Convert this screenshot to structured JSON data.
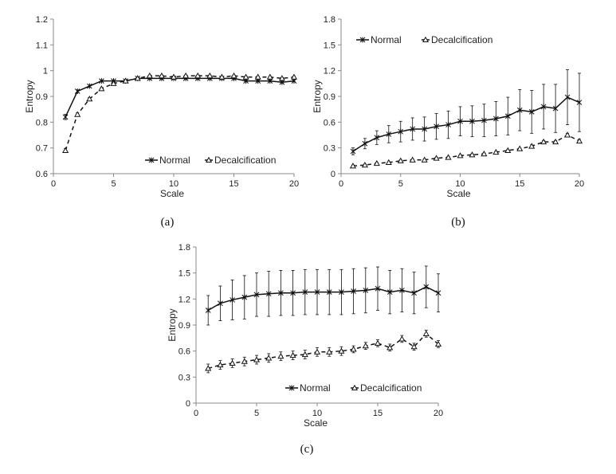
{
  "chart_data": [
    {
      "type": "line",
      "caption": "(a)",
      "xlabel": "Scale",
      "ylabel": "Entropy",
      "xlim": [
        0,
        20
      ],
      "ylim": [
        0.6,
        1.2
      ],
      "xticks": [
        0,
        5,
        10,
        15,
        20
      ],
      "yticks": [
        0.6,
        0.7,
        0.8,
        0.9,
        1,
        1.1,
        1.2
      ],
      "ytick_labels": [
        "0.6",
        "0.7",
        "0.8",
        "0.9",
        "1",
        "1.1",
        "1.2"
      ],
      "legend_position": "bottom-right",
      "x": [
        1,
        2,
        3,
        4,
        5,
        6,
        7,
        8,
        9,
        10,
        11,
        12,
        13,
        14,
        15,
        16,
        17,
        18,
        19,
        20
      ],
      "series": [
        {
          "name": "Normal",
          "style": "solid",
          "marker": "star",
          "values": [
            0.82,
            0.92,
            0.94,
            0.96,
            0.96,
            0.96,
            0.97,
            0.97,
            0.97,
            0.97,
            0.97,
            0.97,
            0.97,
            0.97,
            0.97,
            0.96,
            0.96,
            0.96,
            0.955,
            0.96
          ],
          "errors": [
            0.01,
            0.005,
            0.004,
            0.003,
            0.003,
            0.003,
            0.003,
            0.003,
            0.003,
            0.003,
            0.003,
            0.003,
            0.003,
            0.003,
            0.003,
            0.003,
            0.003,
            0.003,
            0.003,
            0.003
          ]
        },
        {
          "name": "Decalcification",
          "style": "dashed",
          "marker": "triangle",
          "values": [
            0.69,
            0.83,
            0.89,
            0.93,
            0.95,
            0.96,
            0.97,
            0.98,
            0.98,
            0.975,
            0.98,
            0.98,
            0.98,
            0.975,
            0.98,
            0.975,
            0.975,
            0.975,
            0.97,
            0.975
          ],
          "errors": [
            0.008,
            0.006,
            0.005,
            0.004,
            0.003,
            0.003,
            0.003,
            0.003,
            0.003,
            0.003,
            0.003,
            0.003,
            0.003,
            0.003,
            0.003,
            0.003,
            0.003,
            0.003,
            0.003,
            0.003
          ]
        }
      ]
    },
    {
      "type": "line",
      "caption": "(b)",
      "xlabel": "Scale",
      "ylabel": "Entropy",
      "xlim": [
        0,
        20
      ],
      "ylim": [
        0,
        1.8
      ],
      "xticks": [
        0,
        5,
        10,
        15,
        20
      ],
      "yticks": [
        0,
        0.3,
        0.6,
        0.9,
        1.2,
        1.5,
        1.8
      ],
      "ytick_labels": [
        "0",
        "0.3",
        "0.6",
        "0.9",
        "1.2",
        "1.5",
        "1.8"
      ],
      "legend_position": "top-left",
      "x": [
        1,
        2,
        3,
        4,
        5,
        6,
        7,
        8,
        9,
        10,
        11,
        12,
        13,
        14,
        15,
        16,
        17,
        18,
        19,
        20
      ],
      "series": [
        {
          "name": "Normal",
          "style": "solid",
          "marker": "star",
          "values": [
            0.26,
            0.35,
            0.42,
            0.46,
            0.49,
            0.52,
            0.52,
            0.55,
            0.57,
            0.61,
            0.61,
            0.62,
            0.64,
            0.67,
            0.74,
            0.72,
            0.78,
            0.76,
            0.89,
            0.83
          ],
          "errors": [
            0.04,
            0.06,
            0.08,
            0.1,
            0.12,
            0.13,
            0.14,
            0.15,
            0.16,
            0.17,
            0.18,
            0.19,
            0.2,
            0.22,
            0.24,
            0.25,
            0.26,
            0.28,
            0.32,
            0.34
          ]
        },
        {
          "name": "Decalcification",
          "style": "dashed",
          "marker": "triangle",
          "values": [
            0.09,
            0.1,
            0.12,
            0.13,
            0.15,
            0.16,
            0.16,
            0.18,
            0.19,
            0.21,
            0.22,
            0.23,
            0.25,
            0.27,
            0.29,
            0.32,
            0.37,
            0.37,
            0.45,
            0.38
          ],
          "errors": [
            0.01,
            0.01,
            0.01,
            0.01,
            0.01,
            0.01,
            0.01,
            0.01,
            0.01,
            0.01,
            0.01,
            0.01,
            0.01,
            0.01,
            0.01,
            0.015,
            0.015,
            0.015,
            0.02,
            0.02
          ]
        }
      ]
    },
    {
      "type": "line",
      "caption": "(c)",
      "xlabel": "Scale",
      "ylabel": "Entropy",
      "xlim": [
        0,
        20
      ],
      "ylim": [
        0,
        1.8
      ],
      "xticks": [
        0,
        5,
        10,
        15,
        20
      ],
      "yticks": [
        0,
        0.3,
        0.6,
        0.9,
        1.2,
        1.5,
        1.8
      ],
      "ytick_labels": [
        "0",
        "0.3",
        "0.6",
        "0.9",
        "1.2",
        "1.5",
        "1.8"
      ],
      "legend_position": "bottom-right",
      "x": [
        1,
        2,
        3,
        4,
        5,
        6,
        7,
        8,
        9,
        10,
        11,
        12,
        13,
        14,
        15,
        16,
        17,
        18,
        19,
        20
      ],
      "series": [
        {
          "name": "Normal",
          "style": "solid",
          "marker": "star",
          "values": [
            1.07,
            1.15,
            1.19,
            1.22,
            1.25,
            1.26,
            1.27,
            1.27,
            1.28,
            1.28,
            1.28,
            1.28,
            1.29,
            1.3,
            1.32,
            1.28,
            1.3,
            1.27,
            1.34,
            1.27
          ],
          "errors": [
            0.17,
            0.2,
            0.23,
            0.25,
            0.25,
            0.26,
            0.26,
            0.26,
            0.26,
            0.26,
            0.26,
            0.26,
            0.26,
            0.26,
            0.25,
            0.25,
            0.25,
            0.24,
            0.24,
            0.22
          ]
        },
        {
          "name": "Decalcification",
          "style": "dashed",
          "marker": "triangle",
          "values": [
            0.4,
            0.44,
            0.46,
            0.48,
            0.5,
            0.52,
            0.54,
            0.55,
            0.56,
            0.59,
            0.59,
            0.6,
            0.62,
            0.66,
            0.69,
            0.64,
            0.74,
            0.65,
            0.8,
            0.68
          ],
          "errors": [
            0.05,
            0.05,
            0.05,
            0.05,
            0.05,
            0.05,
            0.05,
            0.05,
            0.05,
            0.05,
            0.05,
            0.05,
            0.04,
            0.04,
            0.04,
            0.04,
            0.04,
            0.04,
            0.04,
            0.04
          ]
        }
      ]
    }
  ]
}
